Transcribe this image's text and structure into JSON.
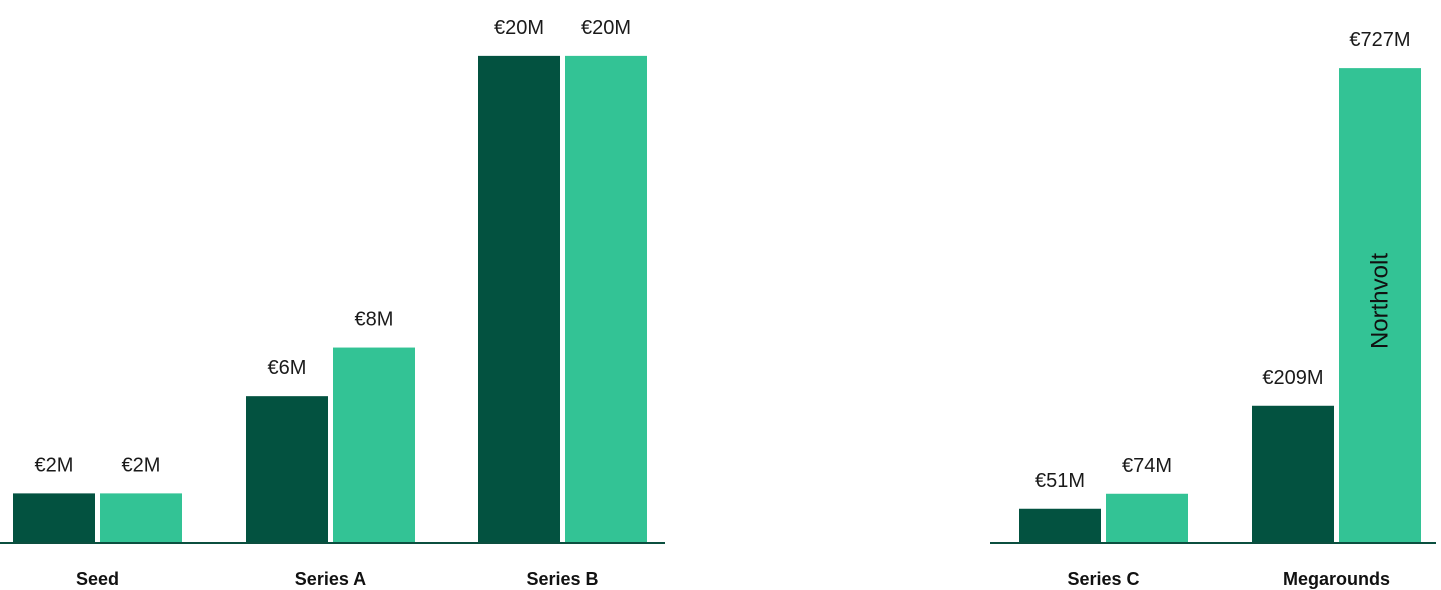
{
  "colors": {
    "dark": "#035240",
    "light": "#33c395",
    "axis": "#0b4f3f"
  },
  "chart_data": [
    {
      "type": "bar",
      "title": "",
      "xlabel": "",
      "ylabel": "",
      "categories": [
        "Seed",
        "Series A",
        "Series B"
      ],
      "series": [
        {
          "values": [
            2,
            6,
            20
          ],
          "labels": [
            "€2M",
            "€6M",
            "€20M"
          ],
          "color": "#035240"
        },
        {
          "values": [
            2,
            8,
            20
          ],
          "labels": [
            "€2M",
            "€8M",
            "€20M"
          ],
          "color": "#33c395"
        }
      ],
      "ylim": [
        0,
        20.9
      ],
      "grid": false,
      "legend": "none"
    },
    {
      "type": "bar",
      "title": "",
      "xlabel": "",
      "ylabel": "",
      "categories": [
        "Series C",
        "Megarounds"
      ],
      "series": [
        {
          "values": [
            51,
            209
          ],
          "labels": [
            "€51M",
            "€209M"
          ],
          "color": "#035240"
        },
        {
          "values": [
            74,
            727
          ],
          "labels": [
            "€74M",
            "€727M"
          ],
          "color": "#33c395"
        }
      ],
      "annotations": [
        {
          "category": "Megarounds",
          "series": 1,
          "text": "Northvolt"
        }
      ],
      "ylim": [
        0,
        764
      ],
      "grid": false,
      "legend": "none"
    }
  ]
}
